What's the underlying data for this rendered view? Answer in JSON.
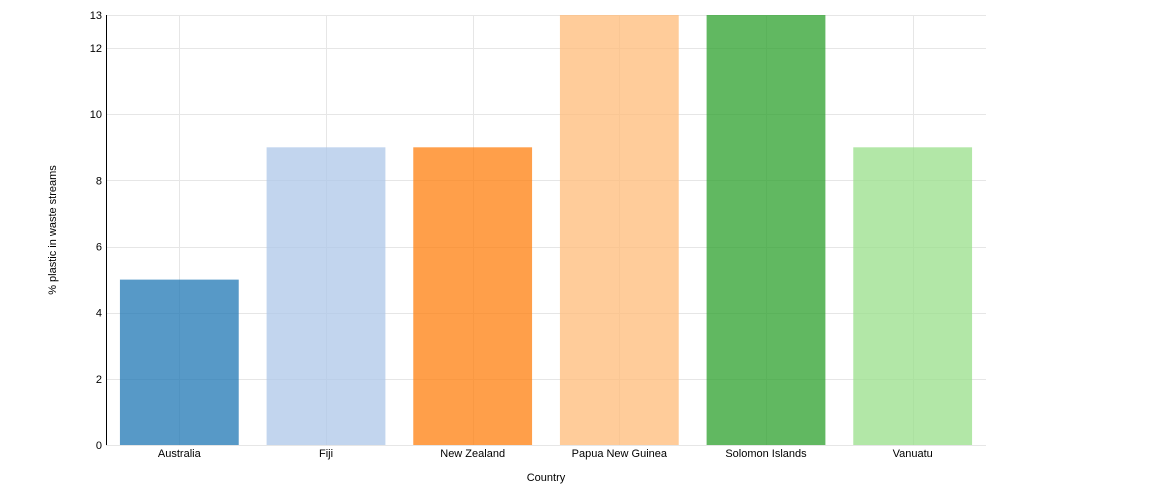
{
  "chart_data": {
    "type": "bar",
    "title": "",
    "xlabel": "Country",
    "ylabel": "% plastic in waste streams",
    "categories": [
      "Australia",
      "Fiji",
      "New Zealand",
      "Papua New Guinea",
      "Solomon Islands",
      "Vanuatu"
    ],
    "values": [
      5,
      9,
      9,
      13,
      13,
      9
    ],
    "colors": [
      "#1f77b4",
      "#aec7e8",
      "#ff7f0e",
      "#ffbb78",
      "#2ca02c",
      "#98df8a"
    ],
    "ylim": [
      0,
      13
    ],
    "yticks": [
      0,
      2,
      4,
      6,
      8,
      10,
      12,
      13
    ],
    "grid": true,
    "legend": "none"
  }
}
